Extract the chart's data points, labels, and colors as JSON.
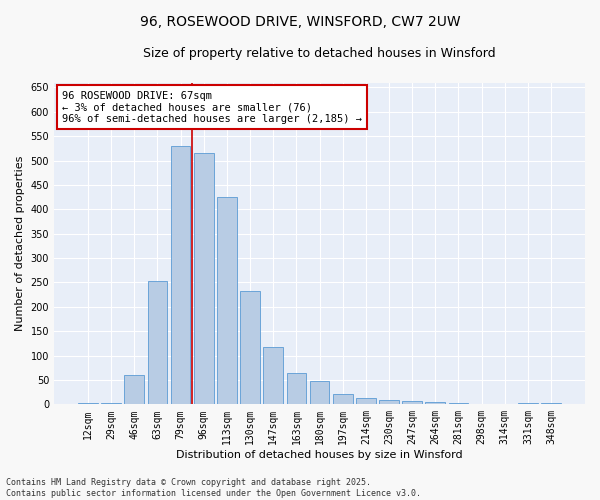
{
  "title": "96, ROSEWOOD DRIVE, WINSFORD, CW7 2UW",
  "subtitle": "Size of property relative to detached houses in Winsford",
  "xlabel": "Distribution of detached houses by size in Winsford",
  "ylabel": "Number of detached properties",
  "categories": [
    "12sqm",
    "29sqm",
    "46sqm",
    "63sqm",
    "79sqm",
    "96sqm",
    "113sqm",
    "130sqm",
    "147sqm",
    "163sqm",
    "180sqm",
    "197sqm",
    "214sqm",
    "230sqm",
    "247sqm",
    "264sqm",
    "281sqm",
    "298sqm",
    "314sqm",
    "331sqm",
    "348sqm"
  ],
  "values": [
    3,
    3,
    60,
    252,
    530,
    515,
    425,
    232,
    118,
    65,
    47,
    22,
    12,
    8,
    7,
    5,
    2,
    0,
    0,
    3,
    3
  ],
  "bar_color": "#b8cce4",
  "bar_edge_color": "#5b9bd5",
  "highlight_index": 5,
  "highlight_line_color": "#cc0000",
  "annotation_text": "96 ROSEWOOD DRIVE: 67sqm\n← 3% of detached houses are smaller (76)\n96% of semi-detached houses are larger (2,185) →",
  "annotation_box_color": "#ffffff",
  "annotation_box_edge_color": "#cc0000",
  "ylim": [
    0,
    660
  ],
  "yticks": [
    0,
    50,
    100,
    150,
    200,
    250,
    300,
    350,
    400,
    450,
    500,
    550,
    600,
    650
  ],
  "fig_bg_color": "#f8f8f8",
  "ax_bg_color": "#e8eef8",
  "grid_color": "#ffffff",
  "footer_text": "Contains HM Land Registry data © Crown copyright and database right 2025.\nContains public sector information licensed under the Open Government Licence v3.0.",
  "title_fontsize": 10,
  "subtitle_fontsize": 9,
  "axis_label_fontsize": 8,
  "tick_fontsize": 7,
  "annotation_fontsize": 7.5,
  "footer_fontsize": 6
}
